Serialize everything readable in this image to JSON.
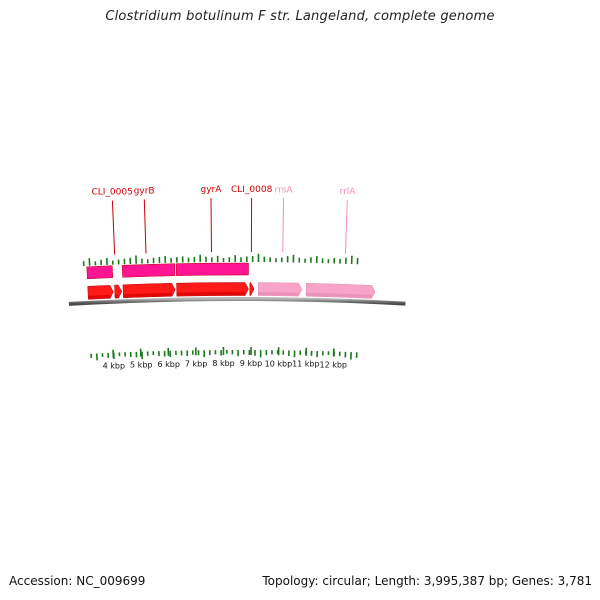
{
  "title": "Clostridium botulinum F str. Langeland, complete genome",
  "footer": {
    "accession": "Accession: NC_009699",
    "summary": "Topology: circular; Length: 3,995,387 bp; Genes: 3,781"
  },
  "colors": {
    "cds_forward": "#ff1a1a",
    "cds_dark": "#d40000",
    "cds_paired": "#ff1493",
    "rrna": "#f7a4c8",
    "rrna_label": "#f48fbf",
    "gene_label": "#cc0000",
    "gc_tick": "#1a7a1a",
    "backbone": "#777777"
  },
  "scale": {
    "ticks": [
      {
        "kbp": 4,
        "label": "4 kbp"
      },
      {
        "kbp": 5,
        "label": "5 kbp"
      },
      {
        "kbp": 6,
        "label": "6 kbp"
      },
      {
        "kbp": 7,
        "label": "7 kbp"
      },
      {
        "kbp": 8,
        "label": "8 kbp"
      },
      {
        "kbp": 9,
        "label": "9 kbp"
      },
      {
        "kbp": 10,
        "label": "10 kbp"
      },
      {
        "kbp": 11,
        "label": "11 kbp"
      },
      {
        "kbp": 12,
        "label": "12 kbp"
      }
    ]
  },
  "gene_labels": [
    {
      "name": "CLI_0005",
      "kbp": 4.2,
      "type": "cds"
    },
    {
      "name": "gyrB",
      "kbp": 5.3,
      "type": "cds"
    },
    {
      "name": "gyrA",
      "kbp": 7.6,
      "type": "cds"
    },
    {
      "name": "CLI_0008",
      "kbp": 9.0,
      "type": "cds"
    },
    {
      "name": "rrsA",
      "kbp": 10.1,
      "type": "rrna"
    },
    {
      "name": "rrlA",
      "kbp": 12.3,
      "type": "rrna"
    }
  ],
  "features": [
    {
      "track": "upper",
      "kind": "cds",
      "start": 3.2,
      "end": 4.1
    },
    {
      "track": "upper",
      "kind": "cds",
      "start": 4.45,
      "end": 6.3
    },
    {
      "track": "upper",
      "kind": "cds",
      "start": 6.35,
      "end": 8.9
    },
    {
      "track": "lower",
      "kind": "cds",
      "start": 3.2,
      "end": 4.1
    },
    {
      "track": "lower",
      "kind": "cds",
      "start": 4.15,
      "end": 4.4
    },
    {
      "track": "lower",
      "kind": "cds",
      "start": 4.45,
      "end": 6.3
    },
    {
      "track": "lower",
      "kind": "cds",
      "start": 6.35,
      "end": 8.9
    },
    {
      "track": "lower",
      "kind": "cds",
      "start": 8.95,
      "end": 9.1
    },
    {
      "track": "lower",
      "kind": "rrna",
      "start": 9.25,
      "end": 10.8
    },
    {
      "track": "lower",
      "kind": "rrna",
      "start": 10.95,
      "end": 13.4
    }
  ],
  "gc_skew": [
    0.4,
    0.8,
    0.3,
    0.5,
    0.7,
    0.3,
    0.4,
    0.5,
    0.6,
    0.9,
    0.4,
    0.3,
    0.5,
    0.6,
    0.7,
    0.4,
    0.5,
    0.6,
    0.4,
    0.5,
    0.8,
    0.5,
    0.4,
    0.6,
    0.3,
    0.4,
    0.7,
    0.4,
    0.5,
    0.6,
    0.9,
    0.5,
    0.4,
    0.3,
    0.4,
    0.6,
    0.8,
    0.4,
    0.3,
    0.5,
    0.7,
    0.4,
    0.3,
    0.5,
    0.4,
    0.6,
    0.9,
    0.6
  ]
}
